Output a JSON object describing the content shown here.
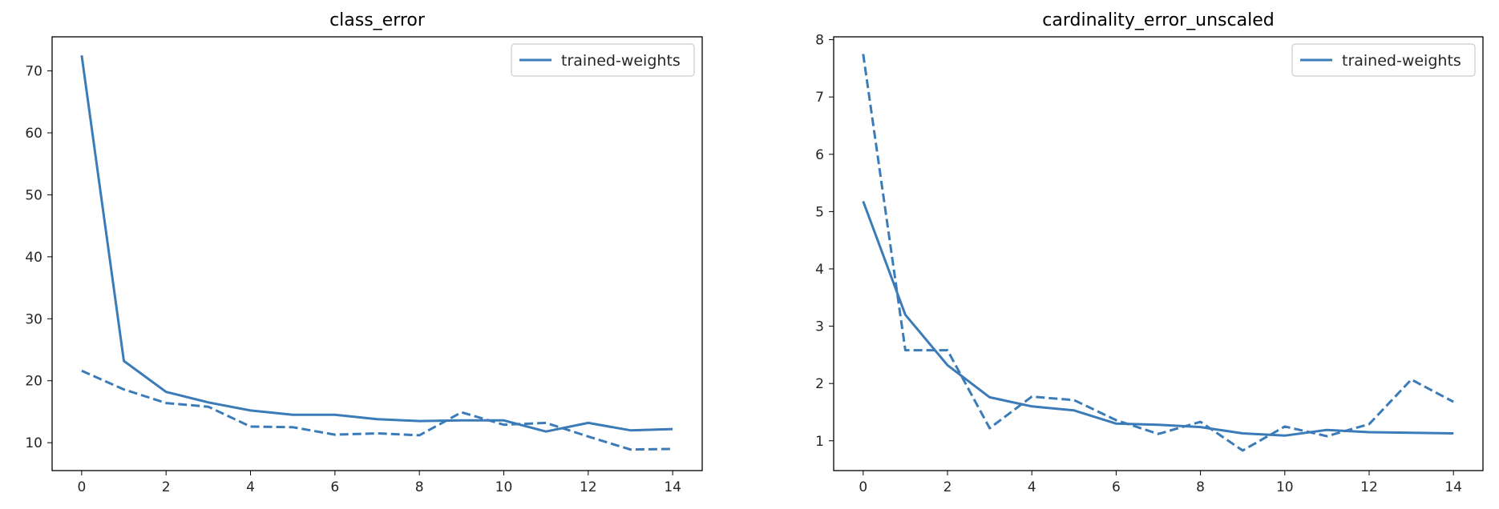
{
  "colors": {
    "series": "#3a7bb8"
  },
  "chart_data": [
    {
      "type": "line",
      "title": "class_error",
      "xlabel": "",
      "ylabel": "",
      "xlim": [
        -0.7,
        14.7
      ],
      "ylim": [
        5.5,
        75.5
      ],
      "xticks": [
        0,
        2,
        4,
        6,
        8,
        10,
        12,
        14
      ],
      "yticks": [
        10,
        20,
        30,
        40,
        50,
        60,
        70
      ],
      "legend": {
        "position": "top-right",
        "entries": [
          "trained-weights"
        ]
      },
      "x": [
        0,
        1,
        2,
        3,
        4,
        5,
        6,
        7,
        8,
        9,
        10,
        11,
        12,
        13,
        14
      ],
      "series": [
        {
          "name": "trained-weights",
          "style": "solid",
          "values": [
            72.5,
            23.2,
            18.2,
            16.5,
            15.2,
            14.5,
            14.5,
            13.8,
            13.5,
            13.6,
            13.6,
            11.8,
            13.2,
            12.0,
            12.2
          ]
        },
        {
          "name": "",
          "style": "dashed",
          "values": [
            21.6,
            18.6,
            16.4,
            15.8,
            12.6,
            12.5,
            11.3,
            11.5,
            11.2,
            14.9,
            12.9,
            13.2,
            11.0,
            8.9,
            9.0
          ]
        }
      ]
    },
    {
      "type": "line",
      "title": "cardinality_error_unscaled",
      "xlabel": "",
      "ylabel": "",
      "xlim": [
        -0.7,
        14.7
      ],
      "ylim": [
        0.48,
        8.05
      ],
      "xticks": [
        0,
        2,
        4,
        6,
        8,
        10,
        12,
        14
      ],
      "yticks": [
        1,
        2,
        3,
        4,
        5,
        6,
        7,
        8
      ],
      "legend": {
        "position": "top-right",
        "entries": [
          "trained-weights"
        ]
      },
      "x": [
        0,
        1,
        2,
        3,
        4,
        5,
        6,
        7,
        8,
        9,
        10,
        11,
        12,
        13,
        14
      ],
      "series": [
        {
          "name": "trained-weights",
          "style": "solid",
          "values": [
            5.18,
            3.2,
            2.32,
            1.76,
            1.6,
            1.53,
            1.3,
            1.28,
            1.24,
            1.13,
            1.09,
            1.19,
            1.15,
            1.14,
            1.13
          ]
        },
        {
          "name": "",
          "style": "dashed",
          "values": [
            7.75,
            2.58,
            2.58,
            1.22,
            1.77,
            1.71,
            1.36,
            1.12,
            1.33,
            0.83,
            1.25,
            1.08,
            1.29,
            2.07,
            1.68
          ]
        }
      ]
    }
  ]
}
